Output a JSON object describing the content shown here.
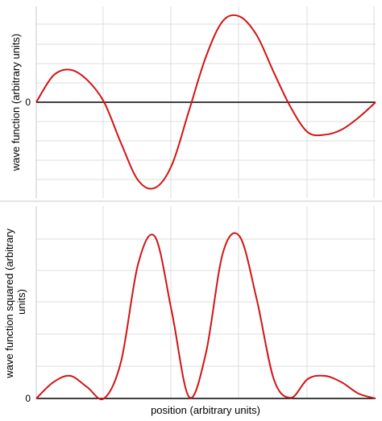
{
  "colors": {
    "curve": "#d21414",
    "zero_line": "#000000",
    "grid": "#dcdcdc",
    "frame": "#c8c8c8"
  },
  "chart_data": [
    {
      "type": "line",
      "ylabel": "wave function (arbitrary units)",
      "xlabel": "",
      "xlim": [
        0,
        1
      ],
      "ylim": [
        -1.1,
        1.1
      ],
      "y_tick_labels": [
        "0"
      ],
      "grid": true,
      "zero_line": true,
      "series": [
        {
          "x": [
            0,
            0.05,
            0.1,
            0.15,
            0.2,
            0.25,
            0.3,
            0.35,
            0.4,
            0.45,
            0.5,
            0.55,
            0.6,
            0.65,
            0.7,
            0.75,
            0.8,
            0.85,
            0.9,
            0.95,
            1
          ],
          "values": [
            0,
            0.31,
            0.38,
            0.26,
            0,
            -0.48,
            -0.91,
            -1.0,
            -0.73,
            -0.1,
            0.53,
            0.95,
            1.0,
            0.78,
            0.35,
            -0.06,
            -0.35,
            -0.38,
            -0.32,
            -0.18,
            0
          ]
        }
      ]
    },
    {
      "type": "line",
      "ylabel": "wave function squared (arbitrary units)",
      "xlabel": "position (arbitrary units)",
      "xlim": [
        0,
        1
      ],
      "ylim": [
        0,
        1.05
      ],
      "y_tick_labels": [
        "0"
      ],
      "grid": true,
      "series": [
        {
          "x": [
            0,
            0.05,
            0.1,
            0.15,
            0.2,
            0.25,
            0.3,
            0.35,
            0.4,
            0.45,
            0.5,
            0.55,
            0.6,
            0.65,
            0.7,
            0.75,
            0.8,
            0.85,
            0.9,
            0.95,
            1
          ],
          "values": [
            0,
            0.1,
            0.14,
            0.07,
            0,
            0.23,
            0.83,
            1.0,
            0.53,
            0.01,
            0.28,
            0.9,
            1.0,
            0.61,
            0.12,
            0.004,
            0.12,
            0.14,
            0.1,
            0.03,
            0
          ]
        }
      ]
    }
  ]
}
